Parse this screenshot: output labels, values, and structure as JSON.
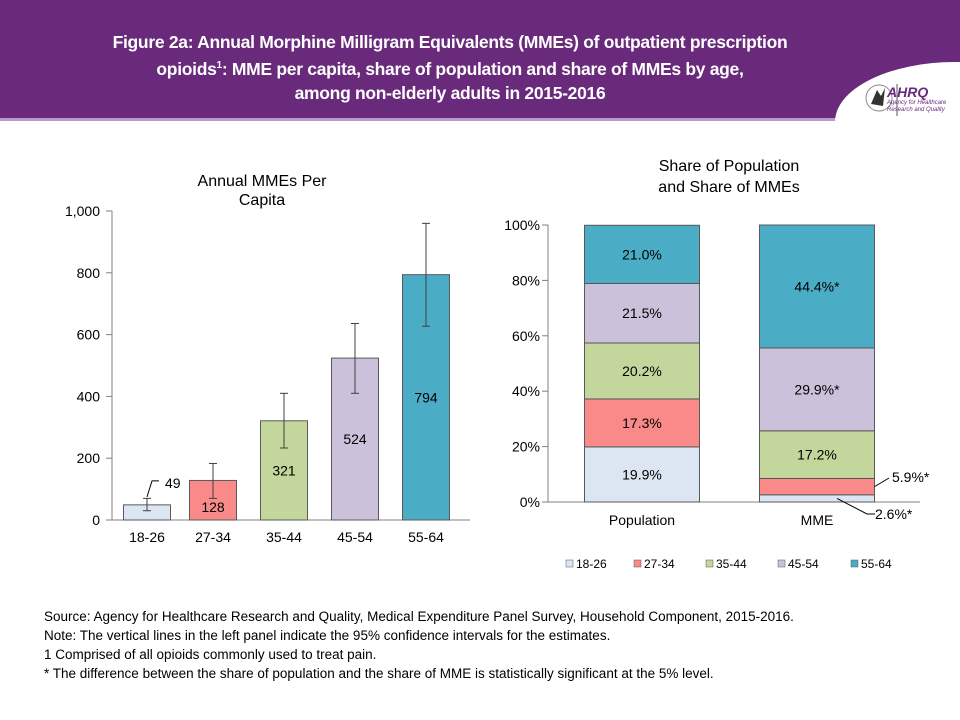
{
  "header": {
    "title_line1": "Figure 2a: Annual Morphine Milligram Equivalents (MMEs) of outpatient prescription",
    "title_line2_pre": "opioids",
    "title_sup": "1",
    "title_line2_post": ": MME per capita, share of population and share of MMEs by age,",
    "title_line3": "among non-elderly adults in 2015-2016",
    "logo": "AHRQ",
    "logo_sub": "Agency for Healthcare Research and Quality",
    "color": "#6a2a7c"
  },
  "chart_data": [
    {
      "type": "bar",
      "title_line1": "Annual MMEs Per",
      "title_line2": "Capita",
      "categories": [
        "18-26",
        "27-34",
        "35-44",
        "45-54",
        "55-64"
      ],
      "values": [
        49,
        128,
        321,
        524,
        794
      ],
      "labels": [
        "49",
        "128",
        "321",
        "524",
        "794"
      ],
      "ci_low": [
        30,
        70,
        233,
        410,
        627
      ],
      "ci_high": [
        70,
        183,
        410,
        636,
        960
      ],
      "colors": [
        "#dce6f2",
        "#fa8a8a",
        "#c3d69b",
        "#ccc1da",
        "#4bacc6"
      ],
      "ylim": [
        0,
        1000
      ],
      "yticks": [
        "0",
        "200",
        "400",
        "600",
        "800",
        "1,000"
      ],
      "grid": false
    },
    {
      "type": "bar",
      "stacked": true,
      "title_line1": "Share of Population",
      "title_line2": "and Share of MMEs",
      "categories": [
        "Population",
        "MME"
      ],
      "series": [
        {
          "name": "18-26",
          "values": [
            19.9,
            2.6
          ],
          "labels": [
            "19.9%",
            "2.6%*"
          ],
          "color": "#dce6f2"
        },
        {
          "name": "27-34",
          "values": [
            17.3,
            5.9
          ],
          "labels": [
            "17.3%",
            "5.9%*"
          ],
          "color": "#fa8a8a"
        },
        {
          "name": "35-44",
          "values": [
            20.2,
            17.2
          ],
          "labels": [
            "20.2%",
            "17.2%"
          ],
          "color": "#c3d69b"
        },
        {
          "name": "45-54",
          "values": [
            21.5,
            29.9
          ],
          "labels": [
            "21.5%",
            "29.9%*"
          ],
          "color": "#ccc1da"
        },
        {
          "name": "55-64",
          "values": [
            21.0,
            44.4
          ],
          "labels": [
            "21.0%",
            "44.4%*"
          ],
          "color": "#4bacc6"
        }
      ],
      "ylim": [
        0,
        100
      ],
      "yticks": [
        "0%",
        "20%",
        "40%",
        "60%",
        "80%",
        "100%"
      ],
      "legend": "bottom",
      "grid": false
    }
  ],
  "notes": [
    "Source: Agency for Healthcare Research and Quality, Medical Expenditure Panel Survey, Household Component, 2015-2016.",
    "Note: The vertical lines in the left panel indicate the 95% confidence intervals for the estimates.",
    "1 Comprised of all opioids commonly used to treat pain.",
    "* The difference between the share of population and the share of MME is statistically significant at the 5% level."
  ]
}
